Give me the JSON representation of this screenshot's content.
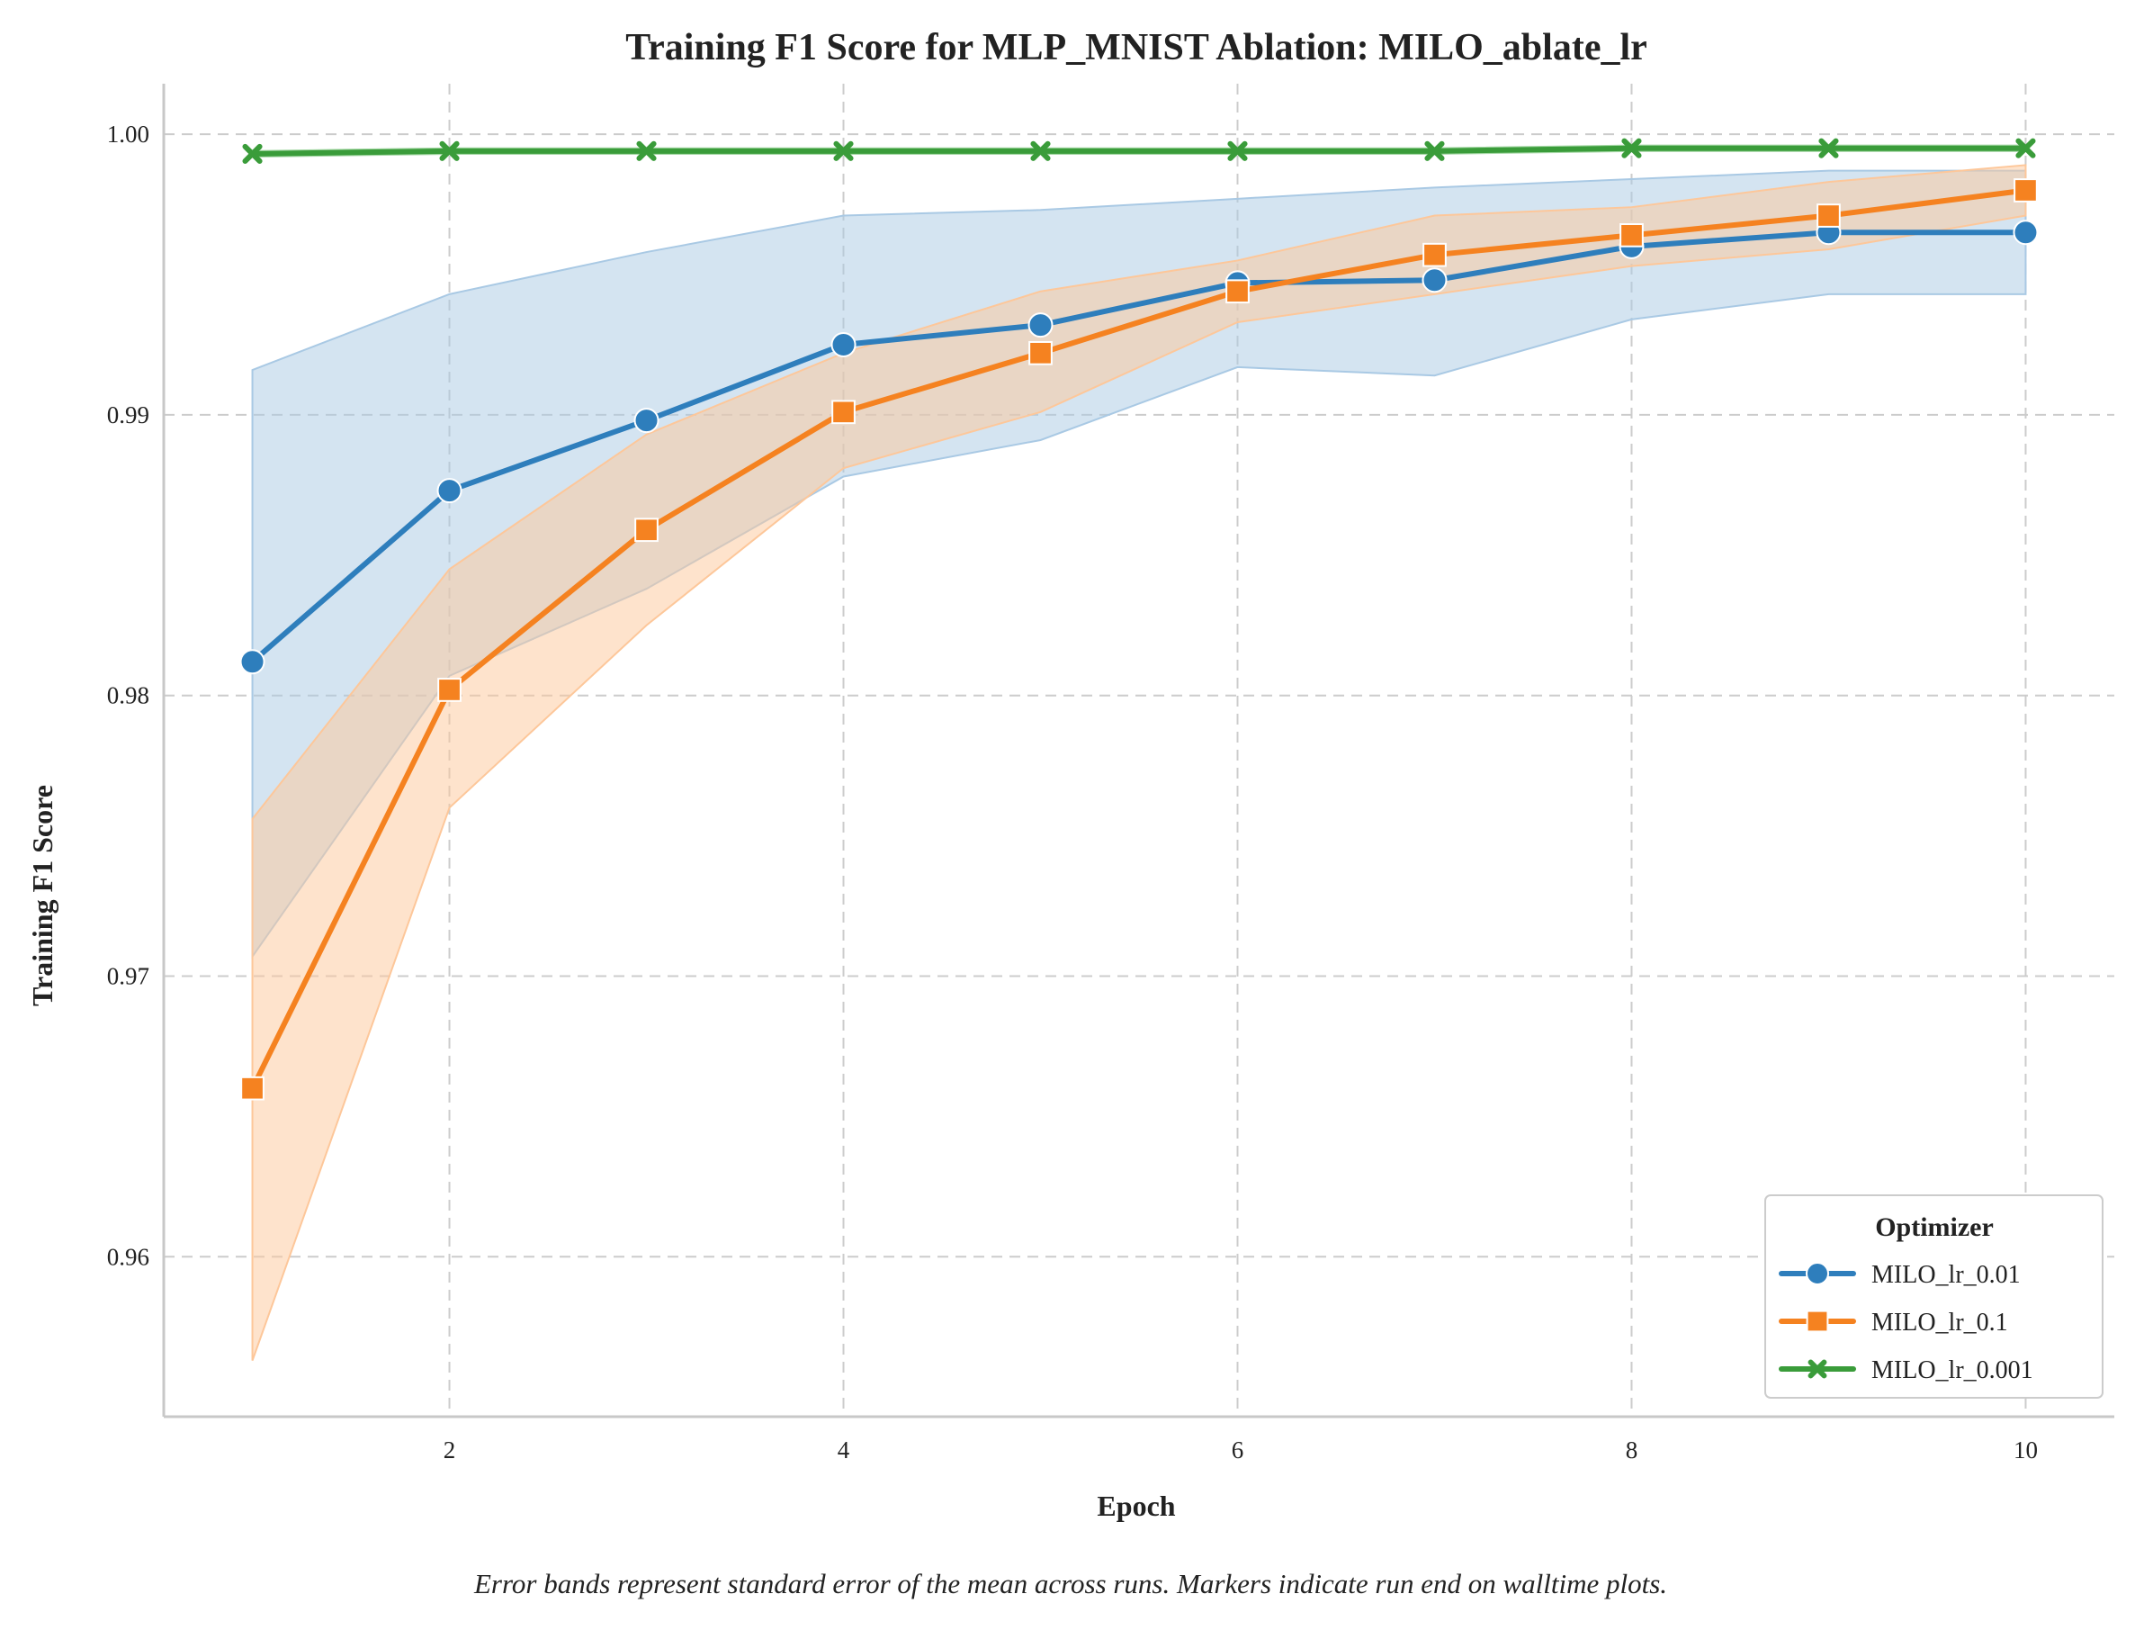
{
  "chart_data": {
    "type": "line",
    "title": "Training F1 Score for MLP_MNIST Ablation: MILO_ablate_lr",
    "xlabel": "Epoch",
    "ylabel": "Training F1 Score",
    "x": [
      1,
      2,
      3,
      4,
      5,
      6,
      7,
      8,
      9,
      10
    ],
    "xlim": [
      0.55,
      10.45
    ],
    "ylim": [
      0.9543,
      1.0018
    ],
    "xticks": [
      2,
      4,
      6,
      8,
      10
    ],
    "yticks": [
      0.96,
      0.97,
      0.98,
      0.99,
      1.0
    ],
    "xtick_labels": [
      "2",
      "4",
      "6",
      "8",
      "10"
    ],
    "ytick_labels": [
      "0.96",
      "0.97",
      "0.98",
      "0.99",
      "1.00"
    ],
    "grid": true,
    "legend": {
      "title": "Optimizer",
      "position": "lower-right"
    },
    "footnote": "Error bands represent standard error of the mean across runs. Markers indicate run end on walltime plots.",
    "series": [
      {
        "name": "MILO_lr_0.01",
        "color": "#2e7ebc",
        "band_color": "#a9c9e4",
        "marker": "circle",
        "values": [
          0.9812,
          0.9873,
          0.9898,
          0.9925,
          0.9932,
          0.9947,
          0.9948,
          0.996,
          0.9965,
          0.9965
        ],
        "lower": [
          0.9707,
          0.9807,
          0.9838,
          0.9878,
          0.9891,
          0.9917,
          0.9914,
          0.9934,
          0.9943,
          0.9943
        ],
        "upper": [
          0.9916,
          0.9943,
          0.9958,
          0.9971,
          0.9973,
          0.9977,
          0.9981,
          0.9984,
          0.9987,
          0.9987
        ]
      },
      {
        "name": "MILO_lr_0.1",
        "color": "#f58220",
        "band_color": "#fdc79a",
        "marker": "square",
        "values": [
          0.966,
          0.9802,
          0.9859,
          0.9901,
          0.9922,
          0.9944,
          0.9957,
          0.9964,
          0.9971,
          0.998
        ],
        "lower": [
          0.9563,
          0.976,
          0.9825,
          0.9881,
          0.9901,
          0.9933,
          0.9943,
          0.9953,
          0.9959,
          0.9971
        ],
        "upper": [
          0.9756,
          0.9845,
          0.9893,
          0.9922,
          0.9944,
          0.9955,
          0.9971,
          0.9974,
          0.9983,
          0.9989
        ]
      },
      {
        "name": "MILO_lr_0.001",
        "color": "#3a9c3a",
        "band_color": "#a6d8a6",
        "marker": "x",
        "values": [
          0.9993,
          0.9994,
          0.9994,
          0.9994,
          0.9994,
          0.9994,
          0.9994,
          0.9995,
          0.9995,
          0.9995
        ],
        "lower": [
          0.9992,
          0.9993,
          0.9993,
          0.9993,
          0.9993,
          0.9993,
          0.9993,
          0.9994,
          0.9994,
          0.9994
        ],
        "upper": [
          0.9994,
          0.9995,
          0.9995,
          0.9995,
          0.9995,
          0.9995,
          0.9995,
          0.9996,
          0.9996,
          0.9996
        ]
      }
    ]
  }
}
